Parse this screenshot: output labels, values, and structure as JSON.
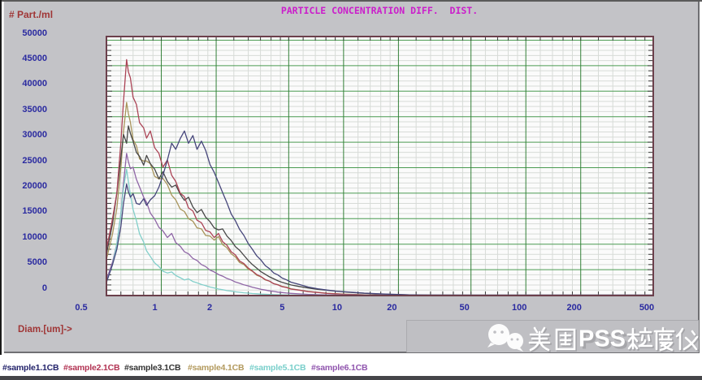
{
  "title": "PARTICLE CONCENTRATION DIFF.  DIST.",
  "y_axis": {
    "label": "# Part./ml",
    "ticks": [
      0,
      5000,
      10000,
      15000,
      20000,
      25000,
      30000,
      35000,
      40000,
      45000,
      50000
    ],
    "color": "#2a2aa0",
    "label_color": "#a03636"
  },
  "x_axis": {
    "label": "Diam.[um]->",
    "ticks": [
      0.5,
      1,
      2,
      5,
      10,
      20,
      50,
      100,
      200,
      500
    ],
    "minor": [
      0.6,
      0.7,
      0.8,
      0.9,
      1.2,
      1.4,
      1.6,
      1.8,
      2.5,
      3,
      3.5,
      4,
      4.5,
      6,
      7,
      8,
      9,
      12,
      14,
      16,
      18,
      25,
      30,
      35,
      40,
      45,
      60,
      70,
      80,
      90,
      120,
      140,
      160,
      180,
      250,
      300,
      350,
      400,
      450
    ],
    "color": "#2a2aa0",
    "label_color": "#a03636"
  },
  "chart_data": {
    "type": "line",
    "xscale": "log",
    "xlim": [
      0.5,
      500
    ],
    "ylim": [
      0,
      50000
    ],
    "grid": {
      "major_color_v": "#338038",
      "major_color_h": "#4b9b52",
      "minor_color": "#d7dbd7",
      "background": "#fbfbfb",
      "frame_color": "#6b3f4b"
    },
    "x": [
      0.5,
      0.54,
      0.57,
      0.6,
      0.62,
      0.645,
      0.66,
      0.677,
      0.7,
      0.73,
      0.76,
      0.8,
      0.83,
      0.87,
      0.92,
      0.97,
      1.02,
      1.08,
      1.14,
      1.2,
      1.27,
      1.34,
      1.41,
      1.49,
      1.57,
      1.66,
      1.75,
      1.85,
      1.95,
      2.06,
      2.17,
      2.29,
      2.42,
      2.55,
      2.69,
      2.84,
      3.0,
      3.16,
      3.34,
      3.52,
      3.72,
      3.92,
      4.14,
      4.37,
      4.61,
      4.87,
      5.14,
      5.7,
      6.4,
      7.2,
      8.1,
      9.1,
      10.2,
      11.5,
      13.0,
      15.0,
      17.0,
      20.0,
      23.0,
      26.0,
      30.0,
      50.0,
      100.0,
      500.0
    ],
    "series": [
      {
        "name": "#sample1.1CB",
        "color": "#45457a",
        "values": [
          2500,
          6000,
          9000,
          13500,
          18000,
          21800,
          20300,
          19200,
          19900,
          18000,
          17800,
          18900,
          17600,
          18700,
          19500,
          21200,
          23500,
          26500,
          29800,
          28600,
          30700,
          32200,
          29800,
          31300,
          28600,
          30200,
          28400,
          25600,
          24100,
          22100,
          20100,
          18100,
          15900,
          14600,
          12900,
          11700,
          10100,
          9000,
          7700,
          6900,
          5800,
          5200,
          4350,
          3950,
          3350,
          3000,
          2550,
          2100,
          1600,
          1250,
          1000,
          800,
          650,
          520,
          400,
          300,
          220,
          130,
          60,
          30,
          10,
          0,
          0,
          0
        ]
      },
      {
        "name": "#sample2.1CB",
        "color": "#ab4456",
        "values": [
          9000,
          15000,
          20000,
          30000,
          38000,
          46200,
          43800,
          42600,
          38800,
          37400,
          33800,
          32800,
          30800,
          32200,
          28900,
          27800,
          25100,
          26500,
          23500,
          22300,
          20000,
          19300,
          17100,
          16500,
          14700,
          14200,
          12700,
          12400,
          11300,
          12100,
          10500,
          9800,
          8500,
          7900,
          6700,
          6200,
          5300,
          4750,
          4050,
          3650,
          3050,
          2750,
          2250,
          2000,
          1650,
          1500,
          1200,
          980,
          680,
          520,
          340,
          260,
          160,
          115,
          55,
          32,
          8,
          0,
          0,
          0,
          0,
          0,
          0,
          0
        ]
      },
      {
        "name": "#sample3.1CB",
        "color": "#474747",
        "values": [
          8000,
          14000,
          20000,
          27000,
          31500,
          29800,
          33200,
          31700,
          30200,
          28000,
          27200,
          25500,
          27400,
          25800,
          24700,
          22800,
          24200,
          22300,
          21200,
          21600,
          19800,
          18600,
          19200,
          17300,
          16200,
          16800,
          15300,
          14400,
          13200,
          12800,
          13000,
          11600,
          10700,
          9500,
          8800,
          7800,
          6800,
          6000,
          5300,
          4600,
          4100,
          3600,
          3200,
          2800,
          2500,
          2250,
          2000,
          1700,
          1400,
          1150,
          950,
          780,
          620,
          480,
          360,
          250,
          170,
          90,
          45,
          15,
          0,
          0,
          0,
          0
        ]
      },
      {
        "name": "#sample4.1CB",
        "color": "#a8945a",
        "values": [
          7000,
          12000,
          17000,
          25000,
          32000,
          37800,
          35600,
          33900,
          30500,
          29300,
          26700,
          26300,
          26300,
          25800,
          23300,
          22800,
          22900,
          21700,
          19600,
          18700,
          16900,
          16400,
          15000,
          14500,
          13200,
          13000,
          11700,
          11600,
          10800,
          11500,
          9900,
          9300,
          8100,
          7500,
          6400,
          6000,
          5100,
          4700,
          3900,
          3600,
          3000,
          2750,
          2250,
          2050,
          1700,
          1550,
          1250,
          1020,
          730,
          560,
          390,
          285,
          195,
          135,
          78,
          42,
          14,
          0,
          0,
          0,
          0,
          0,
          0,
          0
        ]
      },
      {
        "name": "#sample5.1CB",
        "color": "#82cfca",
        "values": [
          2500,
          6000,
          10000,
          16000,
          21000,
          24700,
          22300,
          19700,
          16800,
          14600,
          12000,
          10400,
          8700,
          7600,
          6300,
          5600,
          4700,
          4350,
          4550,
          3850,
          3430,
          2980,
          3180,
          2680,
          2420,
          2080,
          1860,
          1590,
          1410,
          1190,
          1060,
          890,
          790,
          650,
          565,
          465,
          395,
          315,
          265,
          205,
          175,
          128,
          102,
          73,
          57,
          39,
          26,
          10,
          0,
          0,
          0,
          0,
          0,
          0,
          0,
          0,
          0,
          0,
          0,
          0,
          0,
          0,
          0,
          0
        ]
      },
      {
        "name": "#sample6.1CB",
        "color": "#8f66a6",
        "values": [
          3000,
          6500,
          10000,
          16000,
          22000,
          27800,
          26200,
          24800,
          25100,
          22700,
          21200,
          19200,
          18200,
          16100,
          14900,
          13300,
          12600,
          11300,
          12100,
          10300,
          9600,
          8500,
          8100,
          7200,
          6800,
          6000,
          5600,
          4900,
          4550,
          4050,
          3720,
          3280,
          2970,
          2580,
          2320,
          2030,
          1810,
          1540,
          1360,
          1140,
          1010,
          840,
          730,
          590,
          510,
          415,
          355,
          248,
          162,
          98,
          62,
          28,
          10,
          0,
          0,
          0,
          0,
          0,
          0,
          0,
          0,
          0,
          0,
          0
        ]
      }
    ],
    "draw_order": [
      3,
      2,
      1,
      5,
      4,
      0
    ]
  },
  "legend": [
    {
      "label": "#sample1.1CB",
      "color": "#23236b"
    },
    {
      "label": "#sample2.1CB",
      "color": "#b23353"
    },
    {
      "label": "#sample3.1CB",
      "color": "#333333"
    },
    {
      "label": "#sample4.1CB",
      "color": "#b39a5e"
    },
    {
      "label": "#sample5.1CB",
      "color": "#79cfcb"
    },
    {
      "label": "#sample6.1CB",
      "color": "#9055ae"
    }
  ],
  "watermark": {
    "text": "美国PSS粒度仪",
    "latin": "PSS",
    "icon": "wechat-icon"
  }
}
